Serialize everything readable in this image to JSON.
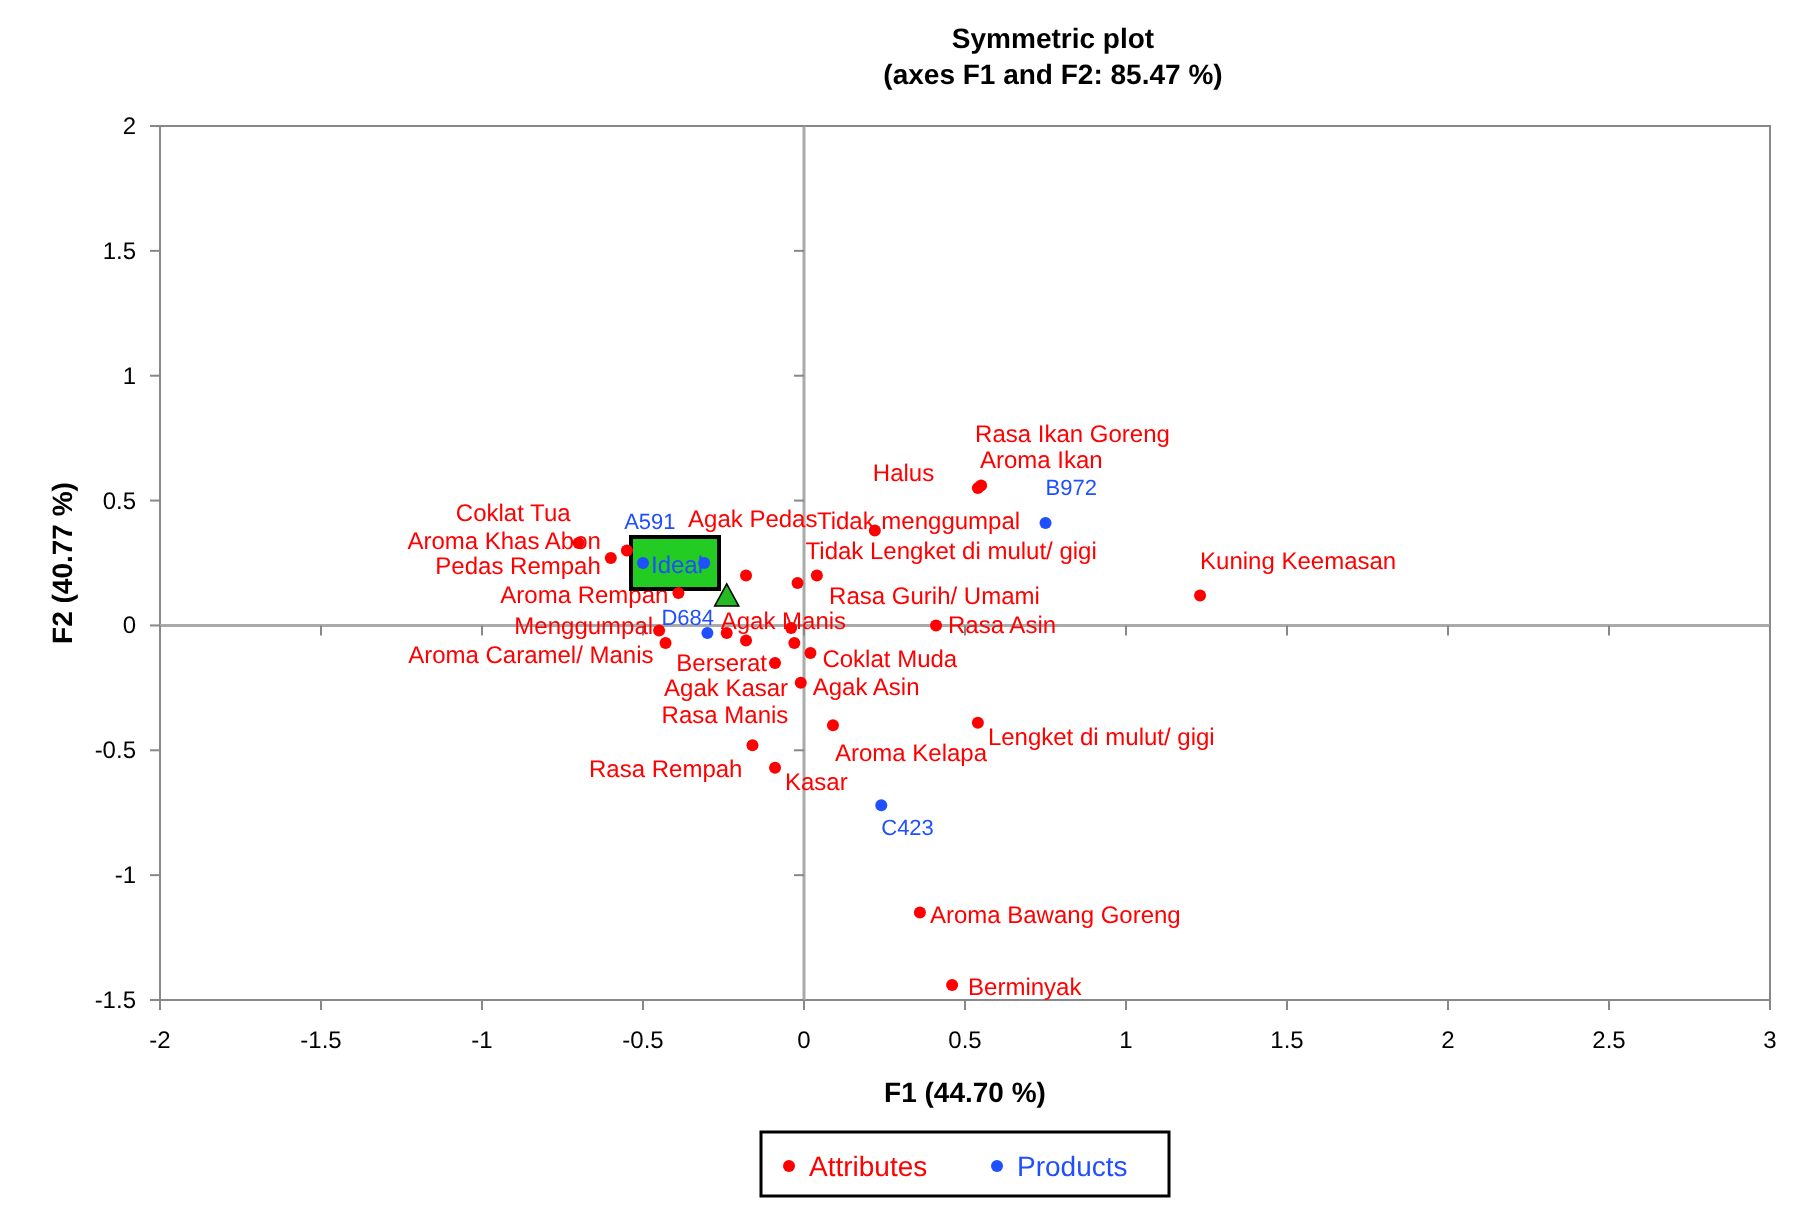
{
  "chart_data": {
    "type": "scatter",
    "title": "Symmetric plot",
    "subtitle": "(axes F1 and F2: 85.47 %)",
    "xlabel": "F1 (44.70 %)",
    "ylabel": "F2 (40.77 %)",
    "xlim": [
      -2,
      3
    ],
    "xticks": [
      -2,
      -1.5,
      -1,
      -0.5,
      0,
      0.5,
      1,
      1.5,
      2,
      2.5,
      3
    ],
    "ylim": [
      -1.5,
      2
    ],
    "yticks": [
      -1.5,
      -1,
      -0.5,
      0,
      0.5,
      1,
      1.5,
      2
    ],
    "legend": "bottom",
    "marker": "circle",
    "series": [
      {
        "name": "Attributes",
        "color": "#ff0000",
        "x": [
          1.23,
          0.41,
          0.55,
          0.54,
          0.22,
          0.04,
          0.54,
          0.09,
          0.36,
          0.46,
          -0.01,
          -0.16,
          -0.09,
          -0.09,
          -0.45,
          -0.43,
          -0.24,
          -0.18,
          -0.04,
          -0.03,
          0.02,
          -0.7,
          -0.02,
          -0.55,
          -0.6,
          -0.18,
          -0.39
        ],
        "values": [
          0.12,
          0.0,
          0.56,
          0.55,
          0.38,
          0.2,
          -0.39,
          -0.4,
          -1.15,
          -1.44,
          -0.23,
          -0.48,
          -0.57,
          -0.15,
          -0.02,
          -0.07,
          -0.03,
          -0.06,
          -0.01,
          -0.07,
          -0.11,
          0.33,
          0.17,
          0.3,
          0.27,
          0.2,
          0.13
        ]
      },
      {
        "name": "Products",
        "color": "#1f4fff",
        "x": [
          -0.31,
          -0.5,
          -0.3,
          0.75,
          0.24
        ],
        "values": [
          0.25,
          0.25,
          -0.03,
          0.41,
          -0.72
        ]
      },
      {
        "color": "#22bb22",
        "marker": "triangle",
        "x": [
          -0.24
        ],
        "values": [
          0.11
        ]
      }
    ],
    "annotations": [
      {
        "text": "Kuning Keemasan",
        "x": 1.23,
        "y": 0.12
      },
      {
        "text": "Rasa Asin",
        "x": 0.41,
        "y": 0.0
      },
      {
        "text": "Rasa Ikan Goreng",
        "x": 0.55,
        "y": 0.56
      },
      {
        "text": "Aroma Ikan",
        "x": 0.54,
        "y": 0.55
      },
      {
        "text": "Halus",
        "x": 0.22,
        "y": 0.38
      },
      {
        "text": "Tidak menggumpal",
        "x": 0.04,
        "y": 0.2
      },
      {
        "text": "Lengket di mulut/ gigi",
        "x": 0.54,
        "y": -0.39
      },
      {
        "text": "Aroma Kelapa",
        "x": 0.09,
        "y": -0.4
      },
      {
        "text": "Aroma Bawang Goreng",
        "x": 0.36,
        "y": -1.15
      },
      {
        "text": "Berminyak",
        "x": 0.46,
        "y": -1.44
      },
      {
        "text": "Agak Asin",
        "x": -0.01,
        "y": -0.23
      },
      {
        "text": "Rasa Rempah",
        "x": -0.16,
        "y": -0.48
      },
      {
        "text": "Kasar",
        "x": -0.09,
        "y": -0.57
      },
      {
        "text": "Berserat",
        "x": -0.09,
        "y": -0.15
      },
      {
        "text": "Menggumpal",
        "x": -0.45,
        "y": -0.02
      },
      {
        "text": "Aroma Caramel/ Manis",
        "x": -0.43,
        "y": -0.07
      },
      {
        "text": "Agak Manis",
        "x": -0.24,
        "y": -0.03
      },
      {
        "text": "Agak Kasar",
        "x": -0.18,
        "y": -0.06
      },
      {
        "text": "Rasa Gurih/ Umami",
        "x": -0.04,
        "y": -0.01
      },
      {
        "text": "Rasa Manis",
        "x": -0.03,
        "y": -0.07
      },
      {
        "text": "Coklat Muda",
        "x": 0.02,
        "y": -0.11
      },
      {
        "text": "Coklat Tua",
        "x": -0.7,
        "y": 0.33
      },
      {
        "text": "Tidak Lengket di mulut/ gigi",
        "x": -0.02,
        "y": 0.17
      },
      {
        "text": "Aroma Khas Abon",
        "x": -0.55,
        "y": 0.3
      },
      {
        "text": "Pedas Rempah",
        "x": -0.6,
        "y": 0.27
      },
      {
        "text": "Agak Pedas",
        "x": -0.18,
        "y": 0.2
      },
      {
        "text": "Aroma Rempah",
        "x": -0.39,
        "y": 0.13
      },
      {
        "text": "A591",
        "x": -0.31,
        "y": 0.25
      },
      {
        "text": "Ideal",
        "x": -0.5,
        "y": 0.25
      },
      {
        "text": "D684",
        "x": -0.3,
        "y": -0.03
      },
      {
        "text": "B972",
        "x": 0.75,
        "y": 0.41
      },
      {
        "text": "C423",
        "x": 0.24,
        "y": -0.72
      }
    ]
  }
}
